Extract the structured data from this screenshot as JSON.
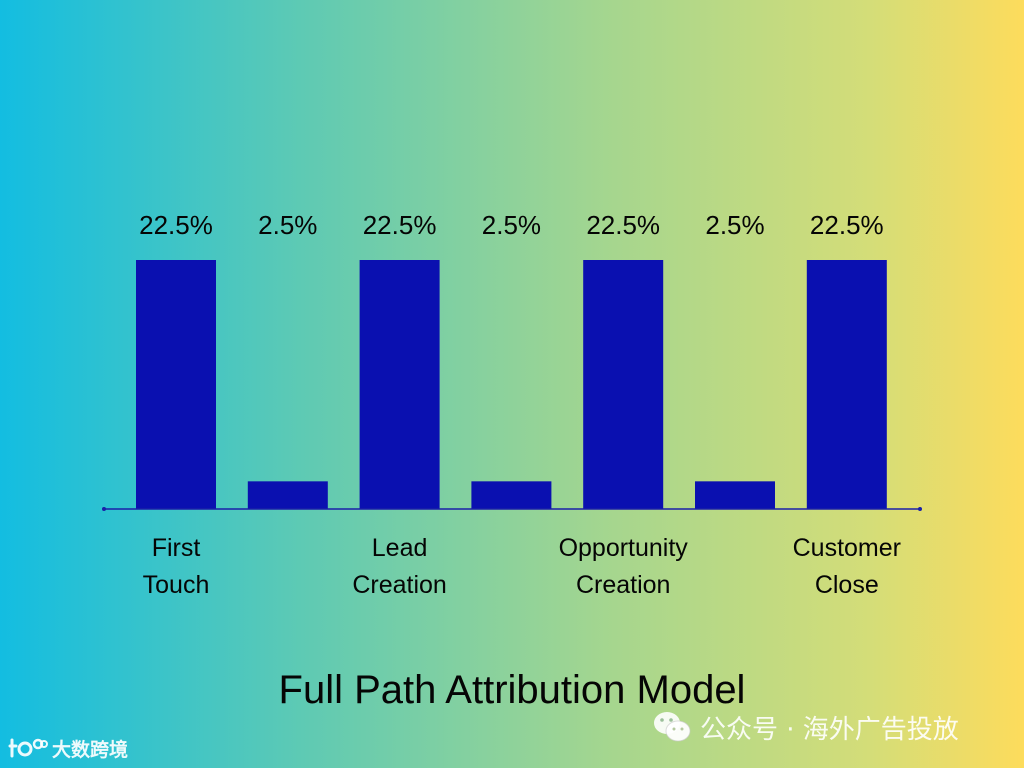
{
  "chart_data": {
    "type": "bar",
    "title": "Full Path Attribution Model",
    "categories": [
      [
        "First",
        "Touch"
      ],
      [],
      [
        "Lead",
        "Creation"
      ],
      [],
      [
        "Opportunity",
        "Creation"
      ],
      [],
      [
        "Customer",
        "Close"
      ]
    ],
    "values": [
      22.5,
      2.5,
      22.5,
      2.5,
      22.5,
      2.5,
      22.5
    ],
    "data_labels": [
      "22.5%",
      "2.5%",
      "22.5%",
      "2.5%",
      "22.5%",
      "2.5%",
      "22.5%"
    ],
    "ylim": [
      0,
      22.5
    ],
    "grid": false,
    "colors": {
      "bar": "#0a10b0",
      "axis": "#1a1fa8",
      "text": "#050505"
    }
  },
  "watermarks": {
    "right_text": "公众号 · 海外广告投放",
    "left_text": "大数跨境"
  }
}
